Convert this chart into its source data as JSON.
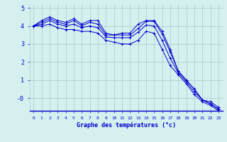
{
  "xlabel": "Graphe des températures (°c)",
  "x": [
    0,
    1,
    2,
    3,
    4,
    5,
    6,
    7,
    8,
    9,
    10,
    11,
    12,
    13,
    14,
    15,
    16,
    17,
    18,
    19,
    20,
    21,
    22,
    23
  ],
  "line1": [
    4.0,
    4.3,
    4.5,
    4.3,
    4.2,
    4.4,
    4.1,
    4.3,
    4.3,
    3.6,
    3.5,
    3.6,
    3.6,
    4.1,
    4.3,
    4.3,
    3.7,
    2.7,
    1.5,
    1.0,
    0.5,
    -0.1,
    -0.2,
    -0.5
  ],
  "line2": [
    4.0,
    4.2,
    4.4,
    4.2,
    4.1,
    4.3,
    4.0,
    4.2,
    4.1,
    3.5,
    3.5,
    3.5,
    3.5,
    3.85,
    4.25,
    4.25,
    3.55,
    2.55,
    1.5,
    1.0,
    0.5,
    -0.1,
    -0.3,
    -0.6
  ],
  "line3": [
    4.0,
    4.1,
    4.3,
    4.1,
    4.0,
    4.1,
    3.9,
    4.0,
    3.9,
    3.4,
    3.35,
    3.35,
    3.35,
    3.65,
    4.05,
    4.0,
    3.2,
    2.2,
    1.4,
    0.9,
    0.35,
    -0.1,
    -0.32,
    -0.62
  ],
  "line4": [
    4.0,
    4.0,
    4.1,
    3.9,
    3.8,
    3.8,
    3.7,
    3.7,
    3.6,
    3.2,
    3.1,
    3.0,
    3.0,
    3.2,
    3.7,
    3.6,
    2.7,
    1.8,
    1.3,
    0.8,
    0.2,
    -0.2,
    -0.4,
    -0.7
  ],
  "line_color": "#0000cd",
  "bg_color": "#d6f0f0",
  "grid_color": "#a8c8c8",
  "ylim": [
    -0.7,
    5.2
  ],
  "xlim": [
    -0.5,
    23.5
  ],
  "ytick_vals": [
    0,
    1,
    2,
    3,
    4,
    5
  ],
  "ytick_labels": [
    "-0",
    "1",
    "2",
    "3",
    "4",
    "5"
  ]
}
